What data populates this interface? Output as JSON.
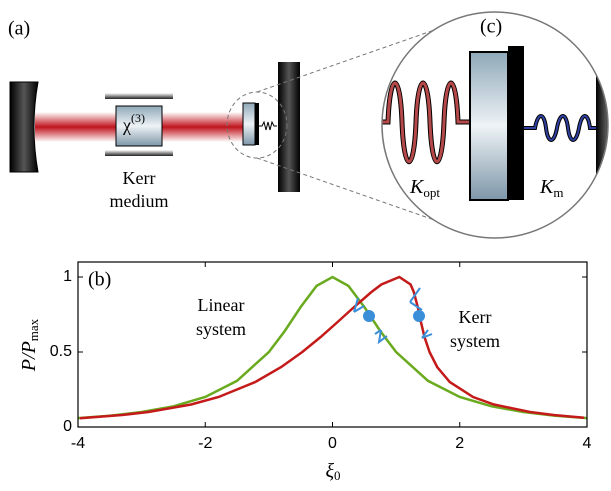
{
  "diagram": {
    "panel_a": "(a)",
    "panel_c": "(c)",
    "kerr_line1": "Kerr",
    "kerr_line2": "medium",
    "chi": {
      "base": "χ",
      "sup": "(3)"
    },
    "k_opt": {
      "base": "K",
      "sub": "opt"
    },
    "k_m": {
      "base": "K",
      "sub": "m"
    }
  },
  "chart_data": {
    "type": "line",
    "panel_label": "(b)",
    "xlabel": {
      "base": "ξ",
      "sub": "0"
    },
    "ylabel": {
      "base": "P/P",
      "sub": "max"
    },
    "xlim": [
      -4,
      4
    ],
    "ylim": [
      0,
      1.1
    ],
    "xticks": [
      -4,
      -2,
      0,
      2,
      4
    ],
    "yticks": [
      0,
      0.5,
      1
    ],
    "annotations": [
      [
        "Linear",
        "system"
      ],
      [
        "Kerr",
        "system"
      ]
    ],
    "series": [
      {
        "name": "Linear",
        "color": "#6aaa1e",
        "x": [
          -4,
          -3.5,
          -3,
          -2.5,
          -2,
          -1.5,
          -1,
          -0.75,
          -0.5,
          -0.25,
          0,
          0.25,
          0.5,
          0.75,
          1,
          1.5,
          2,
          2.5,
          3,
          3.5,
          4
        ],
        "values": [
          0.059,
          0.075,
          0.1,
          0.138,
          0.2,
          0.308,
          0.5,
          0.64,
          0.8,
          0.941,
          1,
          0.941,
          0.8,
          0.64,
          0.5,
          0.308,
          0.2,
          0.138,
          0.1,
          0.075,
          0.059
        ]
      },
      {
        "name": "Kerr",
        "color": "#c41a1a",
        "x": [
          -3.969,
          -3.307,
          -2.895,
          -2.222,
          -1.79,
          -1.213,
          -0.805,
          -0.475,
          -0.186,
          0.08,
          0.34,
          0.612,
          0.768,
          1.05,
          1.227,
          1.278,
          1.34,
          1.39,
          1.446,
          1.525,
          1.645,
          1.843,
          2.21,
          2.538,
          3.105,
          3.475,
          3.955
        ],
        "values": [
          0.058,
          0.08,
          0.1,
          0.15,
          0.2,
          0.3,
          0.4,
          0.5,
          0.6,
          0.7,
          0.8,
          0.9,
          0.95,
          1,
          0.95,
          0.9,
          0.8,
          0.7,
          0.6,
          0.5,
          0.4,
          0.3,
          0.2,
          0.15,
          0.1,
          0.08,
          0.062
        ]
      }
    ]
  }
}
